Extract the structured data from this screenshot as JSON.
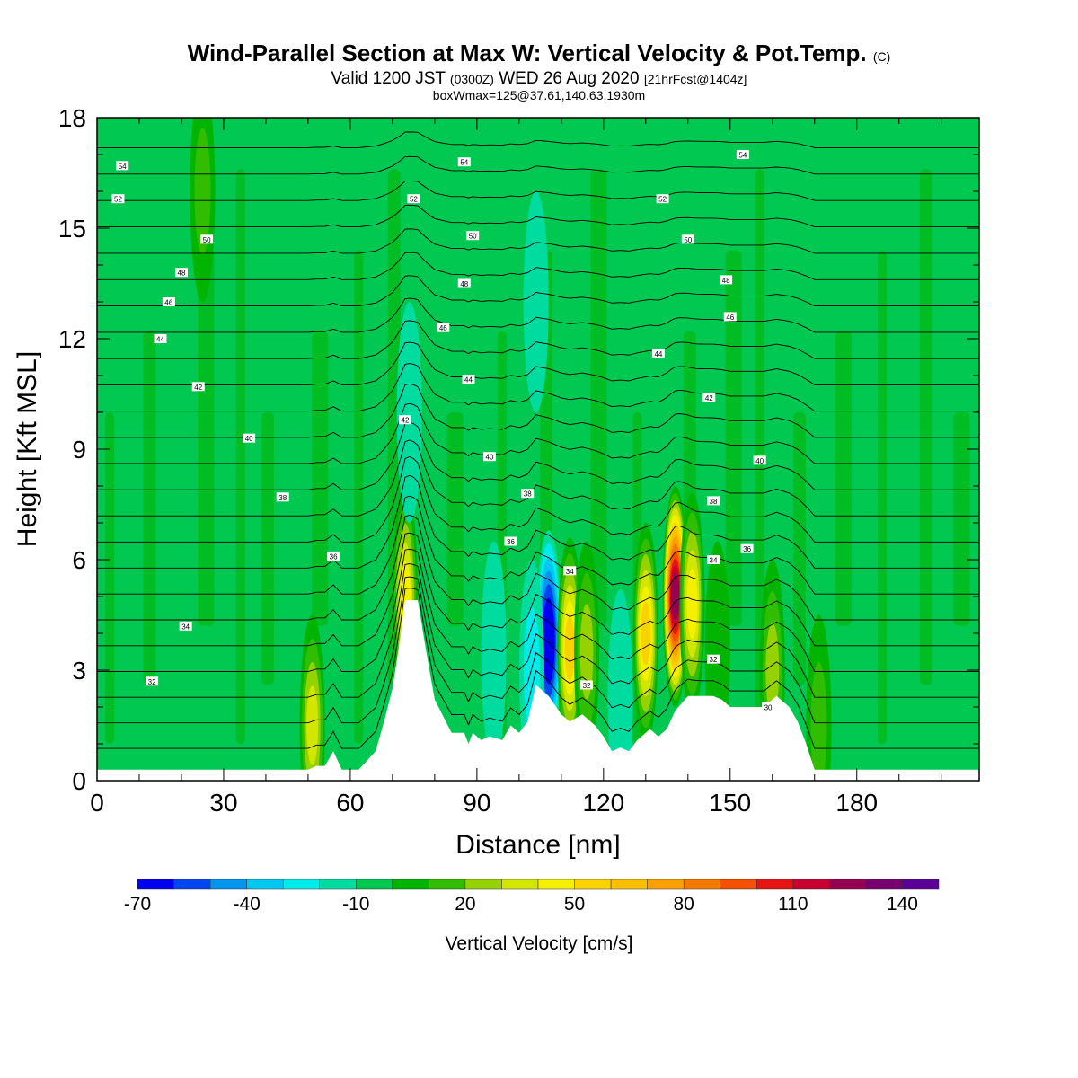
{
  "title": {
    "main": "Wind-Parallel Section at Max W: Vertical Velocity & Pot.Temp.",
    "main_mark": "(C)",
    "valid": "Valid 1200 JST",
    "valid_z": "(0300Z)",
    "valid_date": "WED 26 Aug 2020",
    "fcst": "[21hrFcst@1404z]",
    "box": "boxWmax=125@37.61,140.63,1930m"
  },
  "chart_data": {
    "type": "heatmap",
    "xlabel": "Distance [nm]",
    "ylabel": "Height [Kft MSL]",
    "xlim": [
      0,
      209
    ],
    "ylim": [
      0,
      18
    ],
    "x_ticks": [
      0,
      30,
      60,
      90,
      120,
      150,
      180
    ],
    "y_ticks": [
      0,
      3,
      6,
      9,
      12,
      15,
      18
    ],
    "background_w": -3,
    "colorbar": {
      "label": "Vertical Velocity [cm/s]",
      "min": -70,
      "max": 150,
      "step": 10,
      "tick_values": [
        -70,
        -40,
        -10,
        20,
        50,
        80,
        110,
        140
      ],
      "colors": [
        "#0000f0",
        "#0046f0",
        "#0096f0",
        "#00c8f0",
        "#00ebeb",
        "#00dca0",
        "#00c850",
        "#00b400",
        "#32be00",
        "#96d200",
        "#d2e600",
        "#f5f000",
        "#fad200",
        "#fabe00",
        "#faa000",
        "#f57800",
        "#f55000",
        "#e61414",
        "#c80032",
        "#960050",
        "#78006e",
        "#5a0096"
      ]
    },
    "terrain_profile": [
      [
        0,
        0.3
      ],
      [
        50,
        0.3
      ],
      [
        52,
        0.4
      ],
      [
        54,
        0.4
      ],
      [
        56,
        0.8
      ],
      [
        58,
        0.3
      ],
      [
        62,
        0.3
      ],
      [
        66,
        0.8
      ],
      [
        68,
        1.6
      ],
      [
        70,
        2.5
      ],
      [
        72,
        4.0
      ],
      [
        73,
        4.9
      ],
      [
        76,
        4.9
      ],
      [
        78,
        3.5
      ],
      [
        80,
        2.2
      ],
      [
        84,
        1.3
      ],
      [
        87,
        1.3
      ],
      [
        88,
        1.0
      ],
      [
        89,
        1.3
      ],
      [
        91,
        1.1
      ],
      [
        93,
        1.2
      ],
      [
        96,
        1.1
      ],
      [
        98,
        1.5
      ],
      [
        100,
        1.3
      ],
      [
        102,
        1.6
      ],
      [
        104,
        2.6
      ],
      [
        107,
        2.3
      ],
      [
        110,
        1.8
      ],
      [
        112,
        1.6
      ],
      [
        115,
        1.8
      ],
      [
        118,
        1.5
      ],
      [
        120,
        1.2
      ],
      [
        122,
        0.8
      ],
      [
        124,
        0.9
      ],
      [
        126,
        0.8
      ],
      [
        128,
        1.1
      ],
      [
        131,
        1.4
      ],
      [
        133,
        1.2
      ],
      [
        135,
        1.4
      ],
      [
        137,
        1.9
      ],
      [
        140,
        2.3
      ],
      [
        143,
        2.3
      ],
      [
        146,
        2.3
      ],
      [
        148,
        2.2
      ],
      [
        150,
        2.0
      ],
      [
        155,
        2.0
      ],
      [
        158,
        2.0
      ],
      [
        161,
        2.3
      ],
      [
        164,
        2.0
      ],
      [
        166,
        1.6
      ],
      [
        168,
        1.0
      ],
      [
        170,
        0.3
      ],
      [
        209,
        0.3
      ]
    ],
    "w_features": [
      {
        "x": 107,
        "z": 3.8,
        "value": -70
      },
      {
        "x": 103,
        "z": 3.0,
        "value": -25
      },
      {
        "x": 94,
        "z": 3.5,
        "value": -10
      },
      {
        "x": 124,
        "z": 2.2,
        "value": -10
      },
      {
        "x": 73,
        "z": 5.0,
        "value": 50
      },
      {
        "x": 51,
        "z": 1.5,
        "value": 40
      },
      {
        "x": 112,
        "z": 3.6,
        "value": 55
      },
      {
        "x": 116,
        "z": 3.5,
        "value": 30
      },
      {
        "x": 130,
        "z": 4.0,
        "value": 55
      },
      {
        "x": 137,
        "z": 5.0,
        "value": 125
      },
      {
        "x": 141,
        "z": 4.8,
        "value": 50
      },
      {
        "x": 147,
        "z": 3.5,
        "value": 10
      },
      {
        "x": 160,
        "z": 3.0,
        "value": 25
      },
      {
        "x": 171,
        "z": 1.5,
        "value": 20
      },
      {
        "x": 74,
        "z": 10.0,
        "value": -10
      },
      {
        "x": 104,
        "z": 13.0,
        "value": -15
      },
      {
        "x": 25,
        "z": 16.0,
        "value": 15
      }
    ],
    "theta_isentropes": [
      {
        "theta": 54,
        "z_left": 16.7,
        "label_x": 6
      },
      {
        "theta": 52,
        "z_left": 15.5,
        "label_x": 5
      },
      {
        "theta": 50,
        "z_left": 14.5,
        "label_x": 26
      },
      {
        "theta": 48,
        "z_left": 13.8,
        "label_x": 20
      },
      {
        "theta": 46,
        "z_left": 13.0,
        "label_x": 17
      },
      {
        "theta": 44,
        "z_left": 11.9,
        "label_x": 15
      },
      {
        "theta": 42,
        "z_left": 10.6,
        "label_x": 24
      },
      {
        "theta": 40,
        "z_left": 9.2,
        "label_x": 36
      },
      {
        "theta": 38,
        "z_left": 7.8,
        "label_x": 44
      },
      {
        "theta": 36,
        "z_left": 6.2,
        "label_x": 56
      },
      {
        "theta": 34,
        "z_left": 4.5,
        "label_x": 21
      },
      {
        "theta": 32,
        "z_left": 3.0,
        "label_x": 13
      }
    ],
    "contour_labels": [
      {
        "text": "54",
        "x": 6,
        "z": 16.7
      },
      {
        "text": "54",
        "x": 87,
        "z": 16.8
      },
      {
        "text": "54",
        "x": 153,
        "z": 17.0
      },
      {
        "text": "52",
        "x": 5,
        "z": 15.8
      },
      {
        "text": "52",
        "x": 75,
        "z": 15.8
      },
      {
        "text": "52",
        "x": 134,
        "z": 15.8
      },
      {
        "text": "50",
        "x": 26,
        "z": 14.7
      },
      {
        "text": "50",
        "x": 89,
        "z": 14.8
      },
      {
        "text": "50",
        "x": 140,
        "z": 14.7
      },
      {
        "text": "48",
        "x": 20,
        "z": 13.8
      },
      {
        "text": "48",
        "x": 87,
        "z": 13.5
      },
      {
        "text": "48",
        "x": 149,
        "z": 13.6
      },
      {
        "text": "46",
        "x": 17,
        "z": 13.0
      },
      {
        "text": "46",
        "x": 82,
        "z": 12.3
      },
      {
        "text": "46",
        "x": 150,
        "z": 12.6
      },
      {
        "text": "44",
        "x": 15,
        "z": 12.0
      },
      {
        "text": "44",
        "x": 88,
        "z": 10.9
      },
      {
        "text": "44",
        "x": 133,
        "z": 11.6
      },
      {
        "text": "42",
        "x": 24,
        "z": 10.7
      },
      {
        "text": "42",
        "x": 73,
        "z": 9.8
      },
      {
        "text": "42",
        "x": 145,
        "z": 10.4
      },
      {
        "text": "40",
        "x": 36,
        "z": 9.3
      },
      {
        "text": "40",
        "x": 93,
        "z": 8.8
      },
      {
        "text": "40",
        "x": 157,
        "z": 8.7
      },
      {
        "text": "38",
        "x": 44,
        "z": 7.7
      },
      {
        "text": "38",
        "x": 102,
        "z": 7.8
      },
      {
        "text": "38",
        "x": 146,
        "z": 7.6
      },
      {
        "text": "36",
        "x": 56,
        "z": 6.1
      },
      {
        "text": "36",
        "x": 98,
        "z": 6.5
      },
      {
        "text": "36",
        "x": 154,
        "z": 6.3
      },
      {
        "text": "34",
        "x": 21,
        "z": 4.2
      },
      {
        "text": "34",
        "x": 112,
        "z": 5.7
      },
      {
        "text": "34",
        "x": 146,
        "z": 6.0
      },
      {
        "text": "32",
        "x": 13,
        "z": 2.7
      },
      {
        "text": "32",
        "x": 116,
        "z": 2.6
      },
      {
        "text": "32",
        "x": 146,
        "z": 3.3
      },
      {
        "text": "30",
        "x": 159,
        "z": 2.0
      }
    ]
  }
}
